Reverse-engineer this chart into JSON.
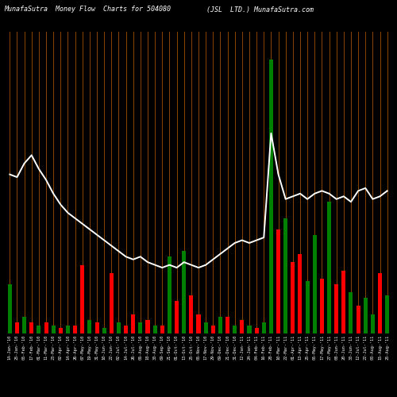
{
  "title_left": "MunafaSutra  Money Flow  Charts for 504080",
  "title_right": "(JSL  LTD.) MunafaSutra.com",
  "bg_color": "#000000",
  "grid_color": "#8B4500",
  "line_color": "#ffffff",
  "bar_colors": [
    "green",
    "red",
    "green",
    "red",
    "green",
    "red",
    "green",
    "red",
    "green",
    "red",
    "red",
    "green",
    "red",
    "green",
    "red",
    "green",
    "red",
    "red",
    "green",
    "red",
    "green",
    "red",
    "green",
    "red",
    "green",
    "red",
    "red",
    "green",
    "red",
    "green",
    "red",
    "green",
    "red",
    "green",
    "red",
    "green",
    "green",
    "red",
    "green",
    "red",
    "red",
    "green",
    "green",
    "red",
    "green",
    "red",
    "red",
    "green",
    "red",
    "green",
    "green",
    "red",
    "green"
  ],
  "bar_heights": [
    18,
    4,
    6,
    4,
    3,
    4,
    3,
    2,
    3,
    3,
    25,
    5,
    4,
    2,
    22,
    4,
    3,
    7,
    4,
    5,
    3,
    3,
    28,
    12,
    30,
    14,
    7,
    4,
    3,
    6,
    6,
    3,
    5,
    3,
    2,
    4,
    100,
    38,
    42,
    26,
    29,
    19,
    36,
    20,
    48,
    18,
    23,
    15,
    10,
    13,
    7,
    22,
    14
  ],
  "line_values": [
    58,
    57,
    62,
    65,
    60,
    56,
    51,
    47,
    44,
    42,
    40,
    38,
    36,
    34,
    32,
    30,
    28,
    27,
    28,
    26,
    25,
    24,
    25,
    24,
    26,
    25,
    24,
    25,
    27,
    29,
    31,
    33,
    34,
    33,
    34,
    35,
    73,
    58,
    49,
    50,
    51,
    49,
    51,
    52,
    51,
    49,
    50,
    48,
    52,
    53,
    49,
    50,
    52
  ],
  "n_bars": 53,
  "xlabels": [
    "14-Jan-'10",
    "25-Jan-'10",
    "05-Feb-'10",
    "17-Feb-'10",
    "01-Mar-'10",
    "11-Mar-'10",
    "23-Mar-'10",
    "02-Apr-'10",
    "14-Apr-'10",
    "26-Apr-'10",
    "07-May-'10",
    "19-May-'10",
    "31-May-'10",
    "10-Jun-'10",
    "22-Jun-'10",
    "02-Jul-'10",
    "14-Jul-'10",
    "26-Jul-'10",
    "06-Aug-'10",
    "18-Aug-'10",
    "30-Aug-'10",
    "09-Sep-'10",
    "21-Sep-'10",
    "01-Oct-'10",
    "13-Oct-'10",
    "25-Oct-'10",
    "05-Nov-'10",
    "17-Nov-'10",
    "29-Nov-'10",
    "09-Dec-'10",
    "21-Dec-'10",
    "31-Dec-'10",
    "12-Jan-'11",
    "24-Jan-'11",
    "04-Feb-'11",
    "16-Feb-'11",
    "28-Feb-'11",
    "10-Mar-'11",
    "22-Mar-'11",
    "01-Apr-'11",
    "13-Apr-'11",
    "25-Apr-'11",
    "05-May-'11",
    "17-May-'11",
    "27-May-'11",
    "08-Jun-'11",
    "20-Jun-'11",
    "30-Jun-'11",
    "12-Jul-'11",
    "22-Jul-'11",
    "03-Aug-'11",
    "15-Aug-'11",
    "25-Aug-'11"
  ],
  "title_fontsize": 6.0,
  "label_fontsize": 3.8,
  "label_color": "#ffffff",
  "ylim_max": 110
}
